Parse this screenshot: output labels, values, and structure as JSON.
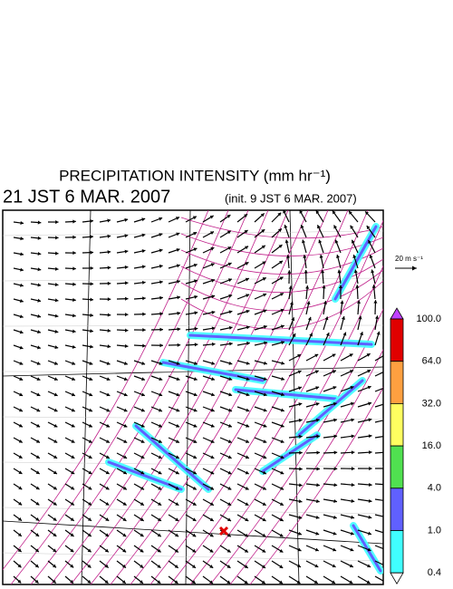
{
  "header": {
    "title": "PRECIPITATION INTENSITY (mm hr⁻¹)",
    "valid_time": "21 JST 6 MAR. 2007",
    "init_time": "(init. 9 JST 6 MAR. 2007)"
  },
  "vector_key": {
    "label": "20 m s⁻¹"
  },
  "colorbar": {
    "levels": [
      {
        "value": 100,
        "label": "100.0"
      },
      {
        "value": 64,
        "label": "64.0"
      },
      {
        "value": 32,
        "label": "32.0"
      },
      {
        "value": 16,
        "label": "16.0"
      },
      {
        "value": 4,
        "label": "4.0"
      },
      {
        "value": 1,
        "label": "1.0"
      },
      {
        "value": 0.4,
        "label": "0.4"
      }
    ],
    "colors": [
      "#e00000",
      "#ffa040",
      "#ffff60",
      "#50e050",
      "#6060ff",
      "#40ffff"
    ],
    "over_color": "#c040ff",
    "under_color": "#ffffff"
  }
}
